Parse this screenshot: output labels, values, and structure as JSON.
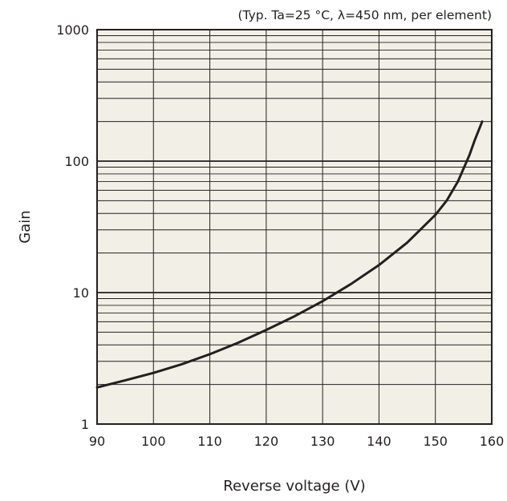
{
  "chart_data": {
    "type": "line",
    "title": "",
    "annotation": "(Typ. Ta=25 °C, λ=450 nm, per element)",
    "xlabel": "Reverse voltage (V)",
    "ylabel": "Gain",
    "x_scale": "linear",
    "y_scale": "log",
    "xlim": [
      90,
      160
    ],
    "ylim": [
      1,
      1000
    ],
    "x_ticks": [
      "90",
      "100",
      "110",
      "120",
      "130",
      "140",
      "150",
      "160"
    ],
    "y_ticks": [
      "1",
      "10",
      "100",
      "1000"
    ],
    "grid": true,
    "legend": "none",
    "series": [
      {
        "x": [
          90,
          95,
          100,
          105,
          110,
          115,
          120,
          125,
          130,
          135,
          140,
          145,
          150,
          152,
          154,
          156,
          157,
          158.3
        ],
        "y": [
          1.9,
          2.15,
          2.45,
          2.85,
          3.4,
          4.15,
          5.2,
          6.6,
          8.6,
          11.6,
          16.2,
          24,
          39,
          50,
          70,
          110,
          145,
          200
        ]
      }
    ]
  },
  "colors": {
    "plot_background": "#f2f0e6",
    "grid": "#231f20",
    "line": "#231f20",
    "text": "#231f20"
  }
}
